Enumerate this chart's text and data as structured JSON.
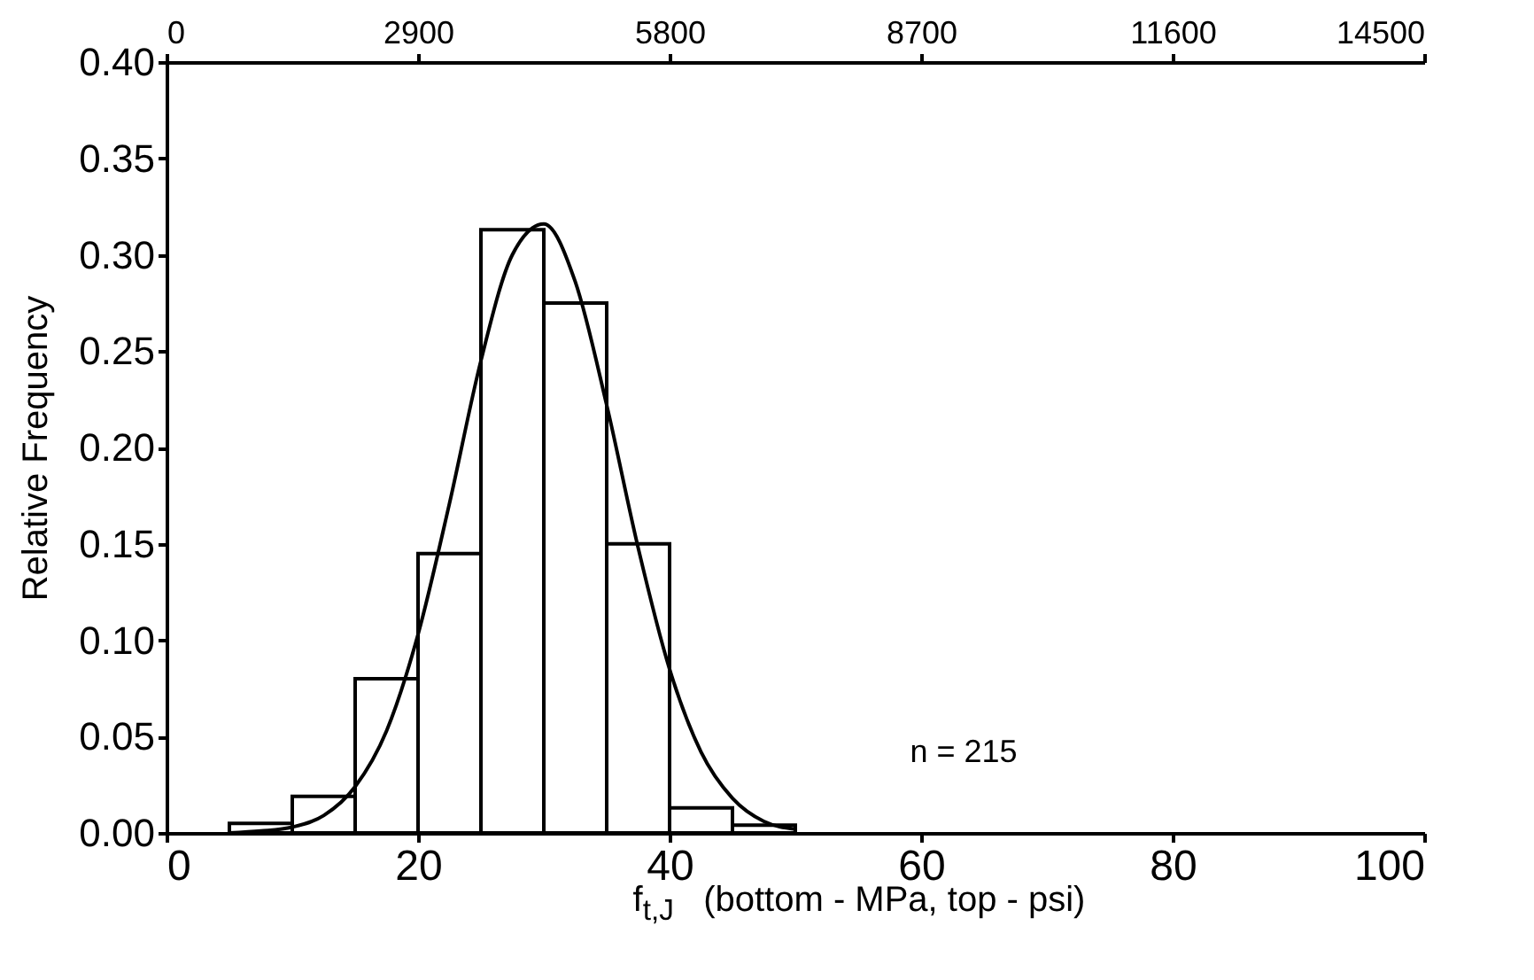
{
  "chart_data": {
    "type": "histogram",
    "xlabel": "f$_{t,J}$   (bottom - MPa, top - psi)",
    "ylabel": "Relative Frequency",
    "bins": [
      5,
      10,
      15,
      20,
      25,
      30,
      35,
      40,
      45,
      50
    ],
    "values": [
      0.005,
      0.019,
      0.08,
      0.145,
      0.313,
      0.275,
      0.15,
      0.013,
      0.004
    ],
    "color": "#ffffff",
    "series": [
      {
        "type": "line",
        "color": "#000000",
        "x": [
          5,
          7.5,
          10,
          12.5,
          15,
          17.5,
          20,
          22.5,
          25,
          27.5,
          30,
          32.5,
          35,
          37.5,
          40,
          42.5,
          45,
          47.5,
          50
        ],
        "values": [
          0,
          0.001,
          0.003,
          0.009,
          0.024,
          0.053,
          0.103,
          0.171,
          0.245,
          0.3,
          0.316,
          0.286,
          0.222,
          0.148,
          0.085,
          0.042,
          0.018,
          0.006,
          0.002
        ]
      }
    ],
    "xlim": [
      0,
      100
    ],
    "xticks": [
      0,
      20,
      40,
      60,
      80,
      100
    ],
    "x2lim": [
      0,
      14500
    ],
    "x2ticks": [
      0,
      2900,
      5800,
      8700,
      11600,
      14500
    ],
    "ylim": [
      0,
      0.4
    ],
    "yticks": [
      {
        "value": 0,
        "label": "0.00"
      },
      {
        "value": 0.05,
        "label": "0.05"
      },
      {
        "value": 0.1,
        "label": "0.10"
      },
      {
        "value": 0.15,
        "label": "0.15"
      },
      {
        "value": 0.2,
        "label": "0.20"
      },
      {
        "value": 0.25,
        "label": "0.25"
      },
      {
        "value": 0.3,
        "label": "0.30"
      },
      {
        "value": 0.35,
        "label": "0.35"
      },
      {
        "value": 0.4,
        "label": "0.40"
      }
    ],
    "annotations": [
      "n = 215"
    ],
    "grid": false,
    "marker": "none",
    "line_style": "solid"
  }
}
